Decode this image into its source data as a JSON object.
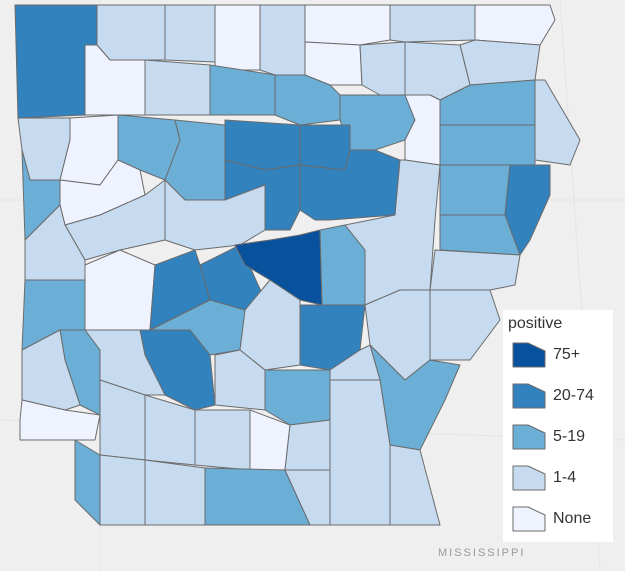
{
  "legend": {
    "title": "positive",
    "items": [
      {
        "label": "75+",
        "color": "#08519c"
      },
      {
        "label": "20-74",
        "color": "#3182bd"
      },
      {
        "label": "5-19",
        "color": "#6baed6"
      },
      {
        "label": "1-4",
        "color": "#c6dbef"
      },
      {
        "label": "None",
        "color": "#eff3ff"
      }
    ]
  },
  "map_labels": [
    "MISSISSIPPI"
  ]
}
